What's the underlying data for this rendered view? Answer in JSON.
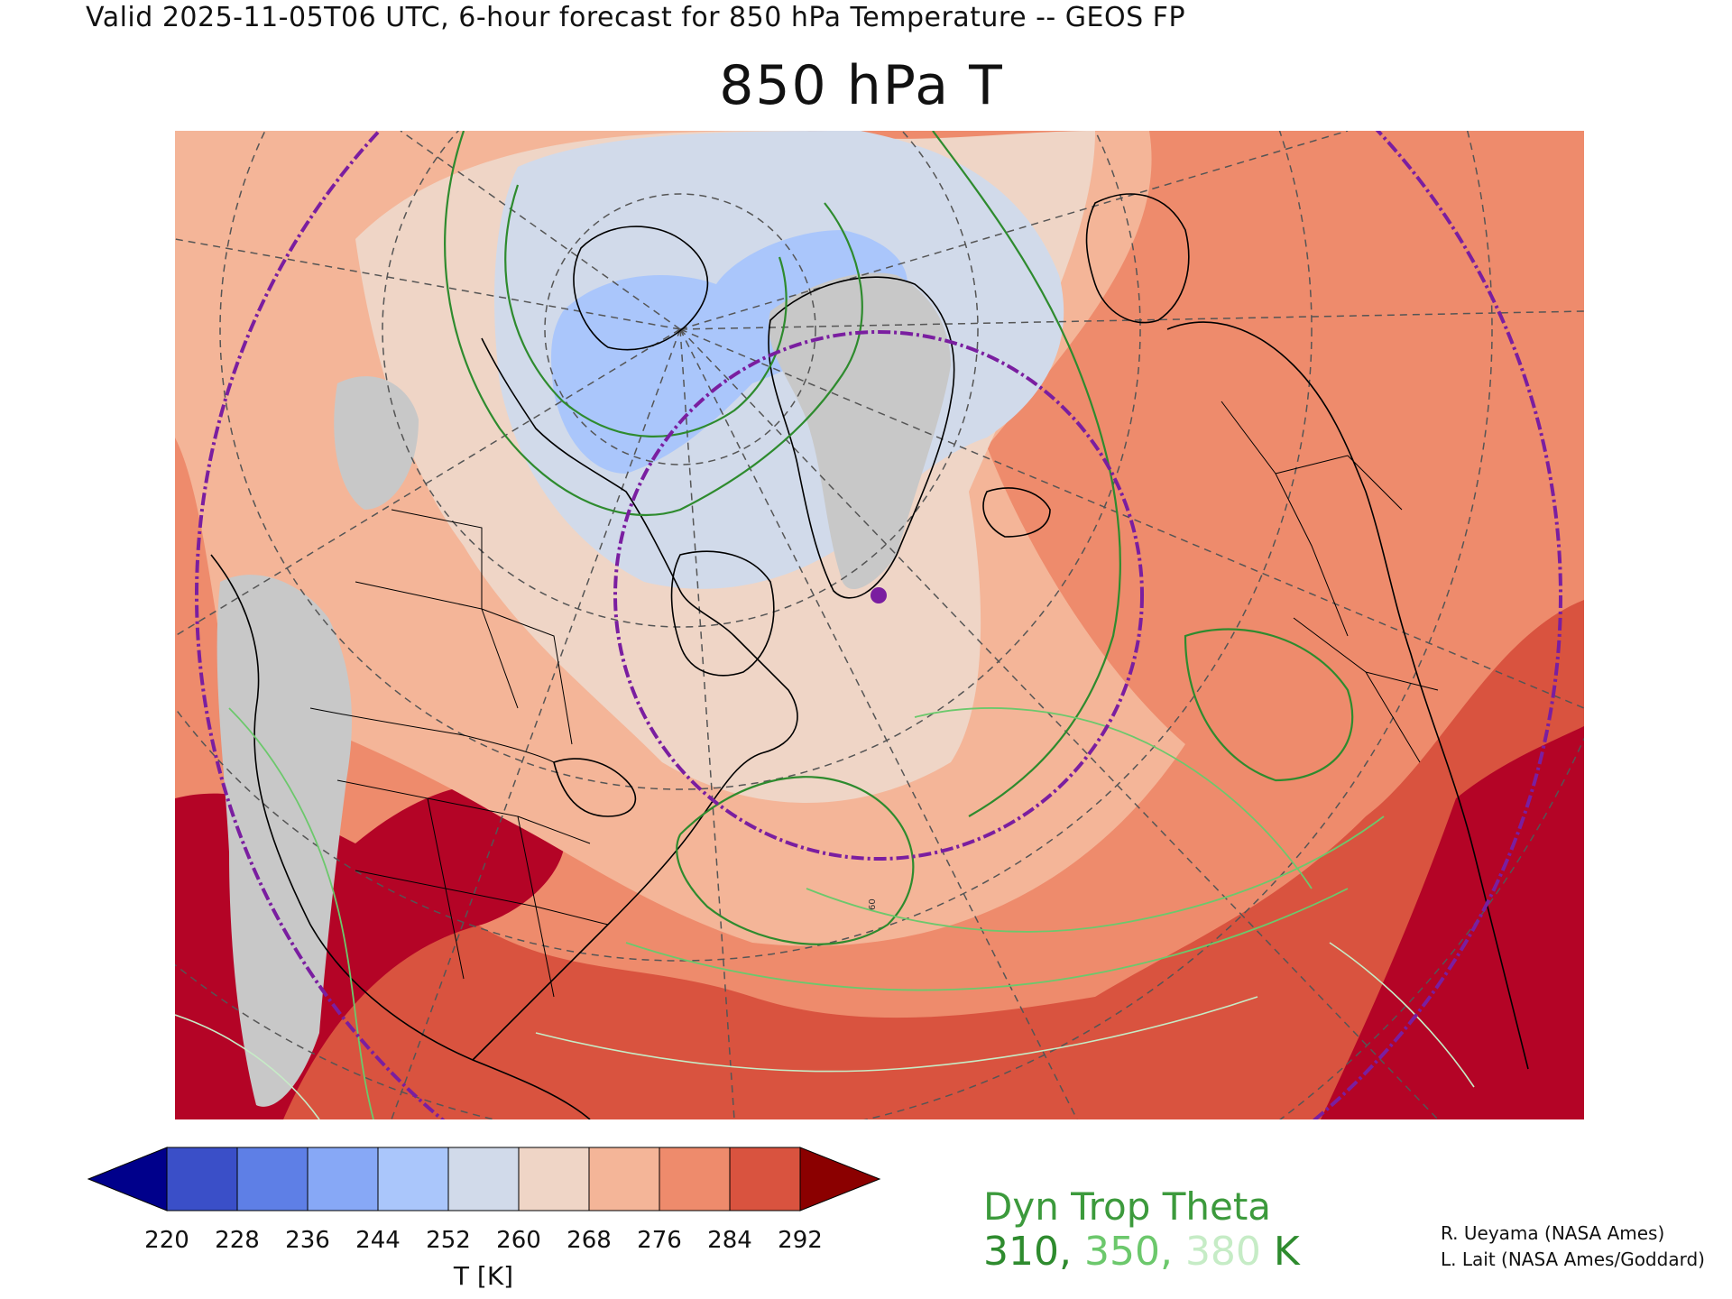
{
  "header": {
    "valid_line": "Valid 2025-11-05T06 UTC, 6-hour forecast for 850 hPa Temperature -- GEOS FP",
    "title": "850 hPa T"
  },
  "map": {
    "marker_label": "60",
    "colors": {
      "c220": "#000080",
      "c228": "#3a4fc8",
      "c236": "#5e7fe6",
      "c244": "#87a8f6",
      "c252": "#aac6fb",
      "c260": "#d1daea",
      "c268": "#efd5c6",
      "c276": "#f4b598",
      "c284": "#ee8b6c",
      "c292": "#d9533f",
      "over": "#b40426",
      "missing": "#c8c8c8",
      "contour_310": "#2e8b2e",
      "contour_350": "#6cc86c",
      "contour_380": "#c6ecc6",
      "circle": "#7a1ea0"
    }
  },
  "colorbar": {
    "ticks": [
      "220",
      "228",
      "236",
      "244",
      "252",
      "260",
      "268",
      "276",
      "284",
      "292"
    ],
    "colors": [
      "#00008b",
      "#3a4fc8",
      "#5e7fe6",
      "#87a8f6",
      "#aac6fb",
      "#d1daea",
      "#efd5c6",
      "#f4b598",
      "#ee8b6c",
      "#d9533f",
      "#b40426",
      "#8b0000"
    ],
    "unit_label": "T [K]"
  },
  "legend": {
    "title": "Dyn Trop Theta",
    "level_310": "310,",
    "level_350": "350,",
    "level_380": "380",
    "unit": "K",
    "color_310": "#2e8b2e",
    "color_350": "#6cc86c",
    "color_380": "#c6ecc6"
  },
  "credits": {
    "line1": "R. Ueyama (NASA Ames)",
    "line2": "L. Lait (NASA Ames/Goddard)"
  }
}
